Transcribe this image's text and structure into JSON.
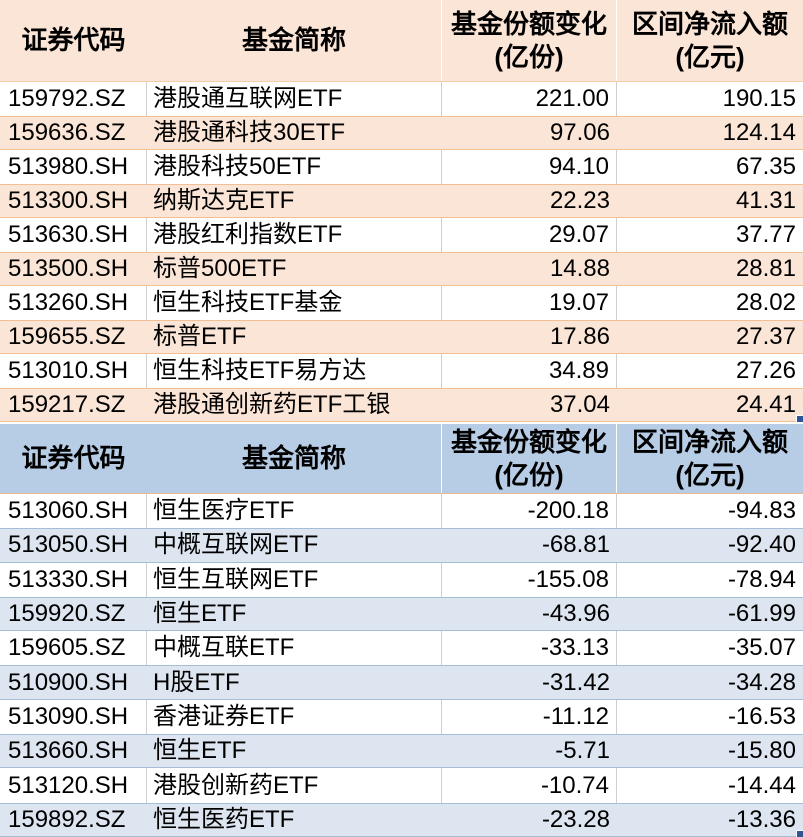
{
  "colors": {
    "inflow_accent": "#FBE5D6",
    "inflow_border": "#F2BE93",
    "outflow_header": "#B7CCE5",
    "outflow_accent": "#DCE5F0",
    "outflow_border": "#A6BDD8",
    "selection_handle": "#2F5597",
    "grid_line": "#CFCFCF"
  },
  "header": {
    "code": "证券代码",
    "name": "基金简称",
    "share_change_line1": "基金份额变化",
    "share_change_line2": "(亿份)",
    "net_flow_line1": "区间净流入额",
    "net_flow_line2": "(亿元)"
  },
  "tables": [
    {
      "id": "inflow",
      "rows": [
        {
          "code": "159792.SZ",
          "name": "港股通互联网ETF",
          "share_change": "221.00",
          "net_flow": "190.15"
        },
        {
          "code": "159636.SZ",
          "name": "港股通科技30ETF",
          "share_change": "97.06",
          "net_flow": "124.14"
        },
        {
          "code": "513980.SH",
          "name": "港股科技50ETF",
          "share_change": "94.10",
          "net_flow": "67.35"
        },
        {
          "code": "513300.SH",
          "name": "纳斯达克ETF",
          "share_change": "22.23",
          "net_flow": "41.31"
        },
        {
          "code": "513630.SH",
          "name": "港股红利指数ETF",
          "share_change": "29.07",
          "net_flow": "37.77"
        },
        {
          "code": "513500.SH",
          "name": "标普500ETF",
          "share_change": "14.88",
          "net_flow": "28.81"
        },
        {
          "code": "513260.SH",
          "name": "恒生科技ETF基金",
          "share_change": "19.07",
          "net_flow": "28.02"
        },
        {
          "code": "159655.SZ",
          "name": "标普ETF",
          "share_change": "17.86",
          "net_flow": "27.37"
        },
        {
          "code": "513010.SH",
          "name": "恒生科技ETF易方达",
          "share_change": "34.89",
          "net_flow": "27.26"
        },
        {
          "code": "159217.SZ",
          "name": "港股通创新药ETF工银",
          "share_change": "37.04",
          "net_flow": "24.41"
        }
      ]
    },
    {
      "id": "outflow",
      "rows": [
        {
          "code": "513060.SH",
          "name": "恒生医疗ETF",
          "share_change": "-200.18",
          "net_flow": "-94.83"
        },
        {
          "code": "513050.SH",
          "name": "中概互联网ETF",
          "share_change": "-68.81",
          "net_flow": "-92.40"
        },
        {
          "code": "513330.SH",
          "name": "恒生互联网ETF",
          "share_change": "-155.08",
          "net_flow": "-78.94"
        },
        {
          "code": "159920.SZ",
          "name": "恒生ETF",
          "share_change": "-43.96",
          "net_flow": "-61.99"
        },
        {
          "code": "159605.SZ",
          "name": "中概互联ETF",
          "share_change": "-33.13",
          "net_flow": "-35.07"
        },
        {
          "code": "510900.SH",
          "name": "H股ETF",
          "share_change": "-31.42",
          "net_flow": "-34.28"
        },
        {
          "code": "513090.SH",
          "name": "香港证券ETF",
          "share_change": "-11.12",
          "net_flow": "-16.53"
        },
        {
          "code": "513660.SH",
          "name": "恒生ETF",
          "share_change": "-5.71",
          "net_flow": "-15.80"
        },
        {
          "code": "513120.SH",
          "name": "港股创新药ETF",
          "share_change": "-10.74",
          "net_flow": "-14.44"
        },
        {
          "code": "159892.SZ",
          "name": "恒生医药ETF",
          "share_change": "-23.28",
          "net_flow": "-13.36"
        }
      ]
    }
  ]
}
